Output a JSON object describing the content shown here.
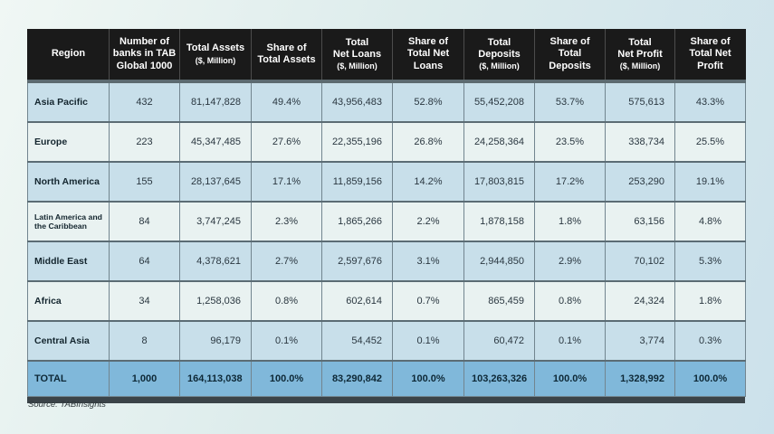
{
  "colors": {
    "bg1": "#f0f7f4",
    "bg2": "#cce1eb",
    "header-bg": "#1a1a1a",
    "header-text": "#ffffff",
    "header-band": "#5c6a70",
    "row-blue": "#c8dfea",
    "row-light": "#e9f2f1",
    "total-bg": "#80b8da",
    "border-v": "#72858f",
    "border-h": "#5b6c74",
    "bar": "#3b4449",
    "region-text": "#14262f",
    "value-text": "#2a3740",
    "total-text": "#0d2836",
    "source-text": "#30393c"
  },
  "chart_data": {
    "type": "table",
    "columns": [
      {
        "label": "Region",
        "sub": ""
      },
      {
        "label": "Number of\nbanks in TAB\nGlobal 1000",
        "sub": ""
      },
      {
        "label": "Total Assets",
        "sub": "($, Million)"
      },
      {
        "label": "Share of\nTotal Assets",
        "sub": ""
      },
      {
        "label": "Total\nNet Loans",
        "sub": "($, Million)"
      },
      {
        "label": "Share of\nTotal Net\nLoans",
        "sub": ""
      },
      {
        "label": "Total\nDeposits",
        "sub": "($, Million)"
      },
      {
        "label": "Share of\nTotal\nDeposits",
        "sub": ""
      },
      {
        "label": "Total\nNet Profit",
        "sub": "($, Million)"
      },
      {
        "label": "Share of\nTotal Net\nProfit",
        "sub": ""
      }
    ],
    "rows": [
      [
        "Asia Pacific",
        "432",
        "81,147,828",
        "49.4%",
        "43,956,483",
        "52.8%",
        "55,452,208",
        "53.7%",
        "575,613",
        "43.3%"
      ],
      [
        "Europe",
        "223",
        "45,347,485",
        "27.6%",
        "22,355,196",
        "26.8%",
        "24,258,364",
        "23.5%",
        "338,734",
        "25.5%"
      ],
      [
        "North America",
        "155",
        "28,137,645",
        "17.1%",
        "11,859,156",
        "14.2%",
        "17,803,815",
        "17.2%",
        "253,290",
        "19.1%"
      ],
      [
        "Latin America and the Caribbean",
        "84",
        "3,747,245",
        "2.3%",
        "1,865,266",
        "2.2%",
        "1,878,158",
        "1.8%",
        "63,156",
        "4.8%"
      ],
      [
        "Middle East",
        "64",
        "4,378,621",
        "2.7%",
        "2,597,676",
        "3.1%",
        "2,944,850",
        "2.9%",
        "70,102",
        "5.3%"
      ],
      [
        "Africa",
        "34",
        "1,258,036",
        "0.8%",
        "602,614",
        "0.7%",
        "865,459",
        "0.8%",
        "24,324",
        "1.8%"
      ],
      [
        "Central Asia",
        "8",
        "96,179",
        "0.1%",
        "54,452",
        "0.1%",
        "60,472",
        "0.1%",
        "3,774",
        "0.3%"
      ]
    ],
    "total_row": [
      "TOTAL",
      "1,000",
      "164,113,038",
      "100.0%",
      "83,290,842",
      "100.0%",
      "103,263,326",
      "100.0%",
      "1,328,992",
      "100.0%"
    ]
  },
  "source": "Source: TABInsights"
}
